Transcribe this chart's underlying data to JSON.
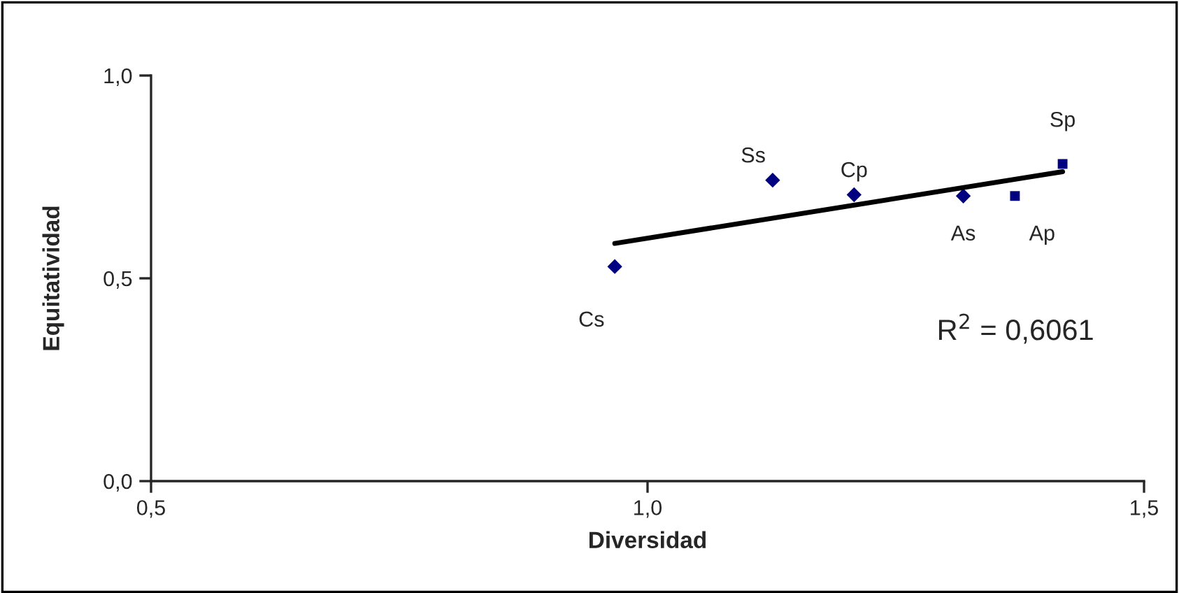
{
  "chart_data": {
    "type": "scatter",
    "xlabel": "Diversidad",
    "ylabel": "Equitatividad",
    "series": [
      {
        "color": "#000080",
        "marker": "diamond",
        "x": [
          0.967,
          1.126,
          1.208,
          1.318
        ],
        "values": [
          0.529,
          0.742,
          0.706,
          0.703
        ]
      },
      {
        "color": "#000080",
        "marker": "square",
        "x": [
          1.37,
          1.418
        ],
        "values": [
          0.703,
          0.782
        ]
      },
      {
        "type": "line",
        "color": "#000000",
        "marker": "none",
        "x": [
          0.967,
          1.418
        ],
        "values": [
          0.586,
          0.763
        ]
      }
    ],
    "xlim": [
      0.5,
      1.5
    ],
    "ylim": [
      0.0,
      1.0
    ],
    "xticks": [
      {
        "value": 0.5,
        "label": "0,5"
      },
      {
        "value": 1.0,
        "label": "1,0"
      },
      {
        "value": 1.5,
        "label": "1,5"
      }
    ],
    "yticks": [
      {
        "value": 0.0,
        "label": "0,0"
      },
      {
        "value": 0.5,
        "label": "0,5"
      },
      {
        "value": 1.0,
        "label": "1,0"
      }
    ],
    "grid": false,
    "legend": false,
    "annotations": [
      {
        "text": "Cs",
        "x": 0.967,
        "y": 0.529
      },
      {
        "text": "Ss",
        "x": 1.126,
        "y": 0.742
      },
      {
        "text": "Cp",
        "x": 1.208,
        "y": 0.706
      },
      {
        "text": "As",
        "x": 1.318,
        "y": 0.703
      },
      {
        "text": "Ap",
        "x": 1.37,
        "y": 0.703
      },
      {
        "text": "Sp",
        "x": 1.418,
        "y": 0.782
      },
      "R$^{2}$ = 0,6061"
    ]
  }
}
